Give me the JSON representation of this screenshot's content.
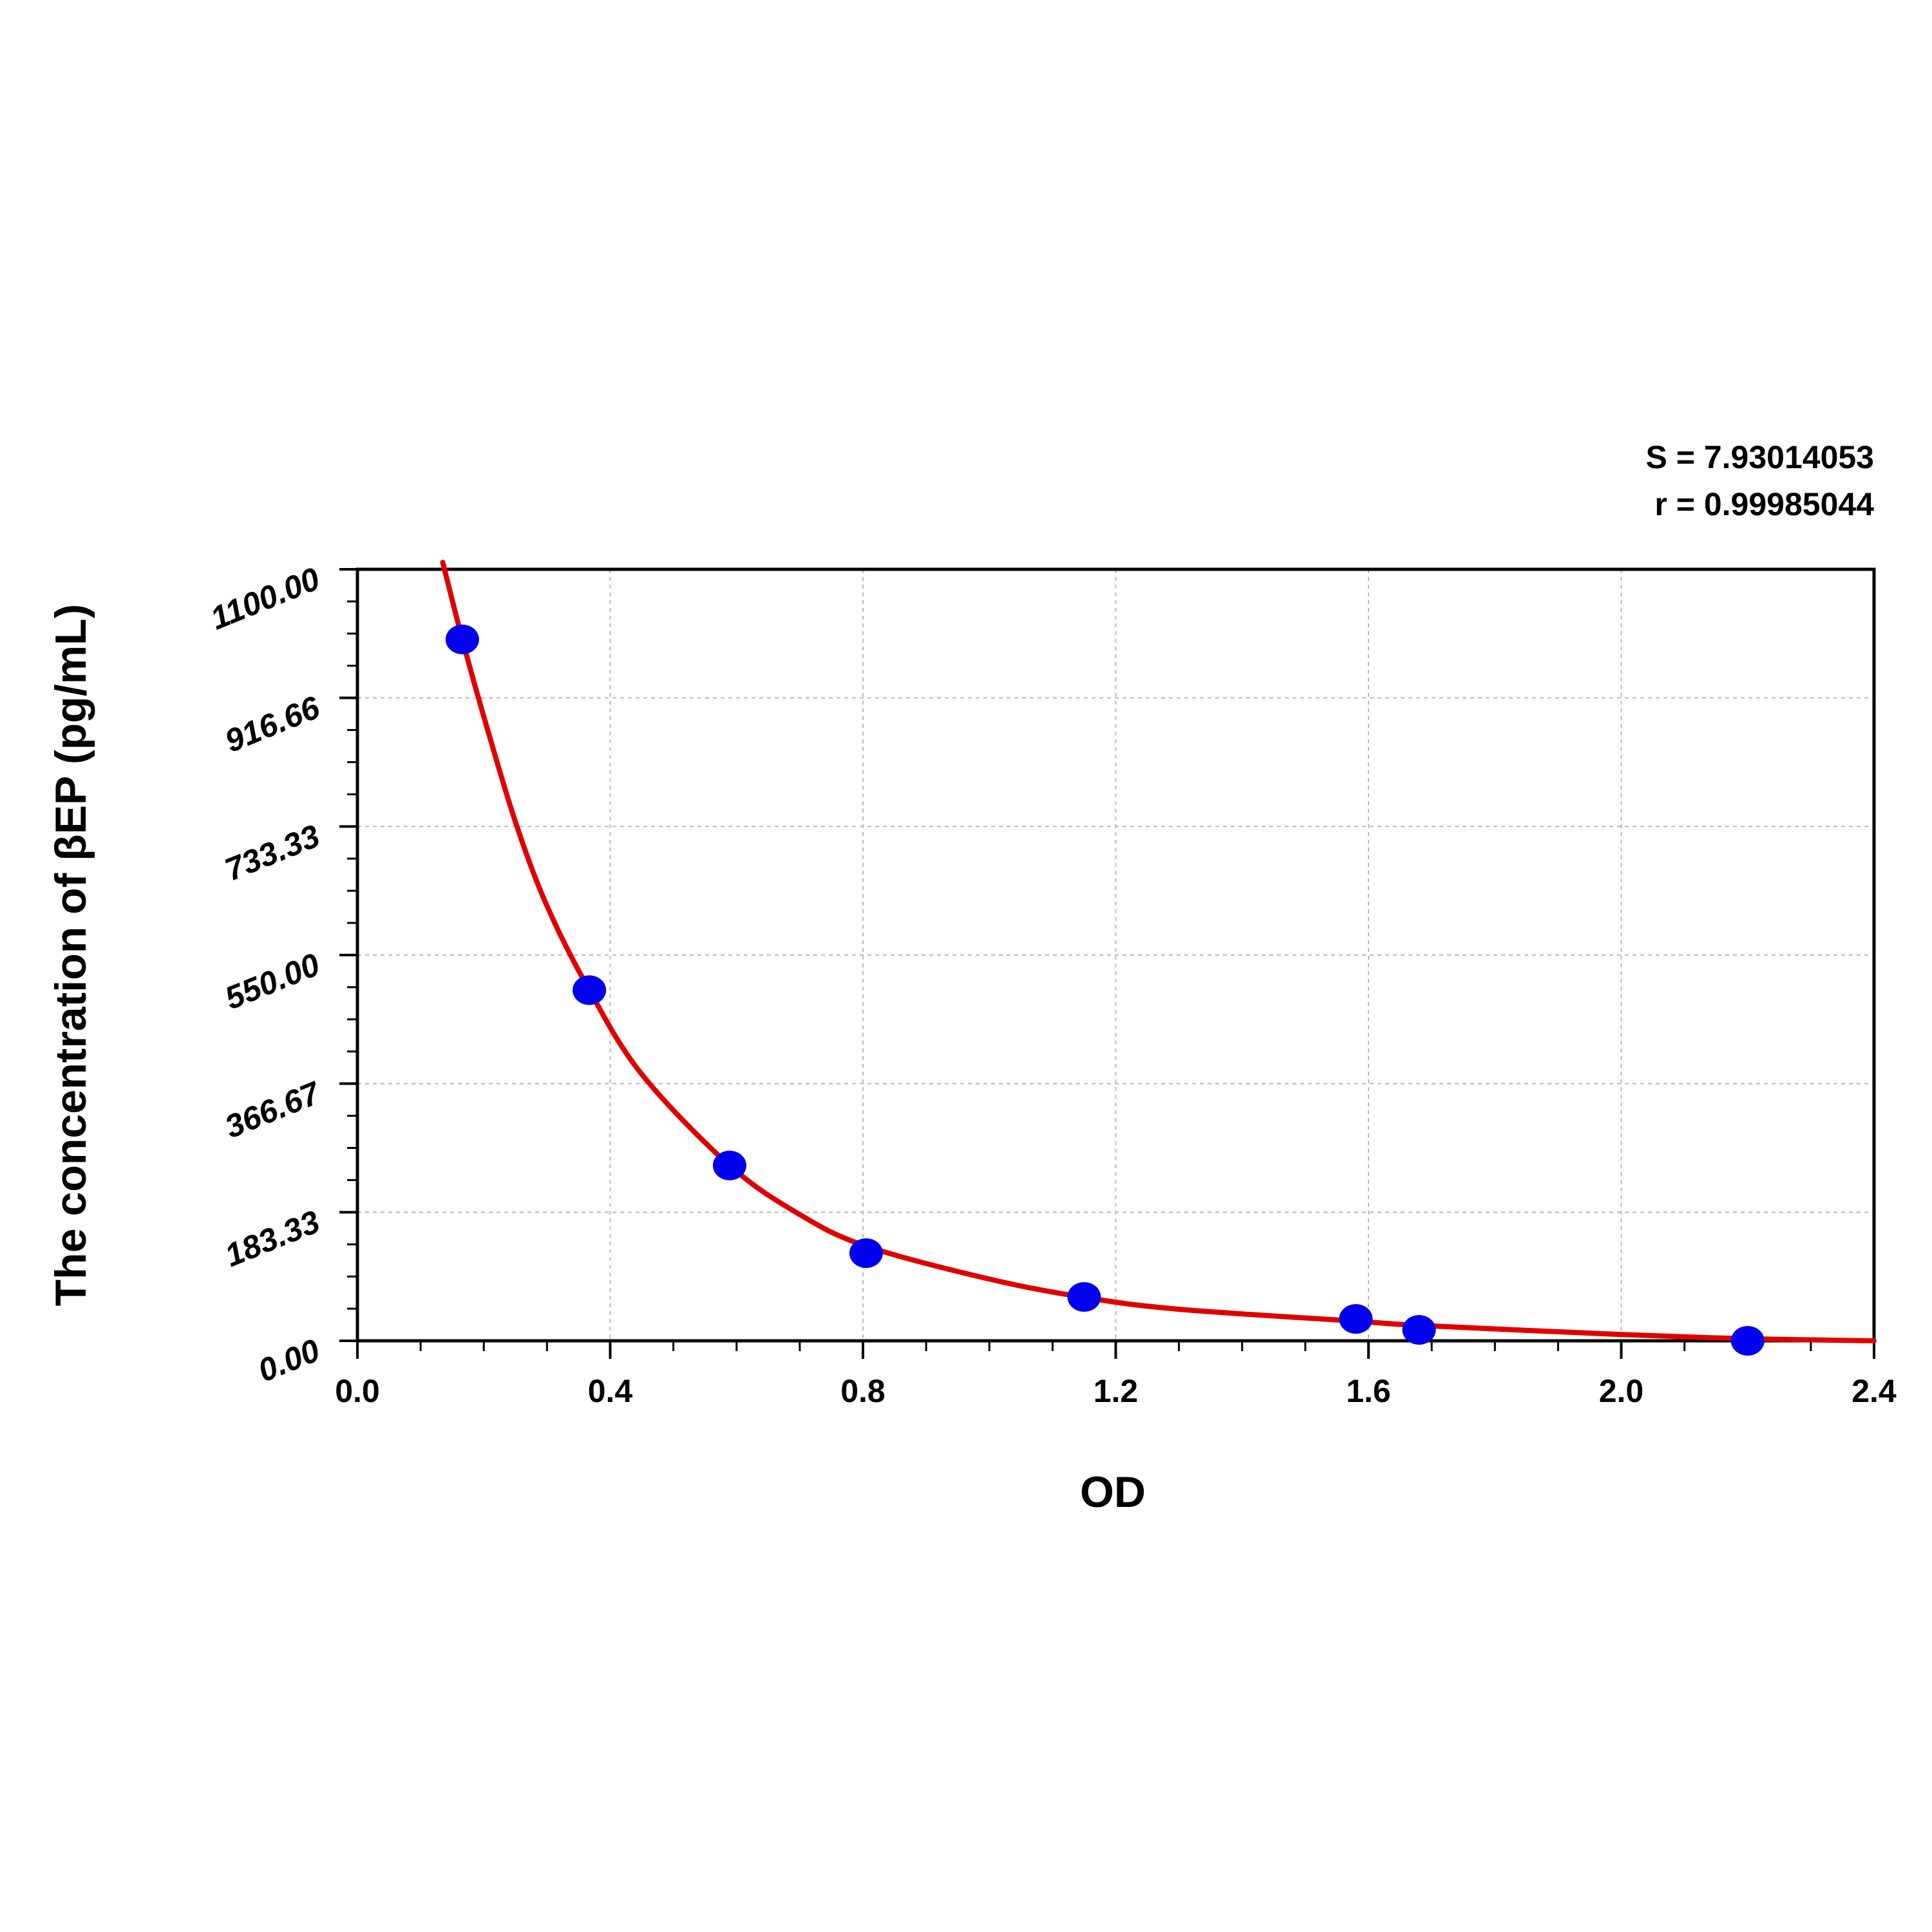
{
  "chart_data": {
    "type": "scatter",
    "title": "",
    "xlabel": "OD",
    "ylabel": "The concentration of βEP (pg/mL)",
    "xlim": [
      0.0,
      2.4
    ],
    "ylim": [
      0.0,
      1100.0
    ],
    "x_ticks": [
      "0.0",
      "0.4",
      "0.8",
      "1.2",
      "1.6",
      "2.0",
      "2.4"
    ],
    "y_ticks": [
      "0.00",
      "183.33",
      "366.67",
      "550.00",
      "733.33",
      "916.66",
      "1100.00"
    ],
    "grid": true,
    "annotations": [
      "S = 7.93014053",
      "r = 0.99985044"
    ],
    "series": [
      {
        "kind": "points",
        "color": "#0000ee",
        "x": [
          0.166,
          0.367,
          0.589,
          0.805,
          1.15,
          1.58,
          1.68,
          2.2
        ],
        "y": [
          1000,
          500,
          250,
          125,
          62.5,
          31.25,
          15.6,
          0
        ]
      },
      {
        "kind": "fit-curve",
        "color": "#e00000",
        "x": [
          0.135,
          0.166,
          0.2,
          0.25,
          0.3,
          0.367,
          0.45,
          0.589,
          0.7,
          0.805,
          1.0,
          1.15,
          1.3,
          1.58,
          1.68,
          2.0,
          2.2,
          2.4
        ],
        "y": [
          1110,
          1000,
          890,
          740,
          620,
          500,
          380,
          250,
          180,
          135,
          88,
          62,
          45,
          28,
          22,
          9,
          3,
          0
        ]
      }
    ]
  }
}
